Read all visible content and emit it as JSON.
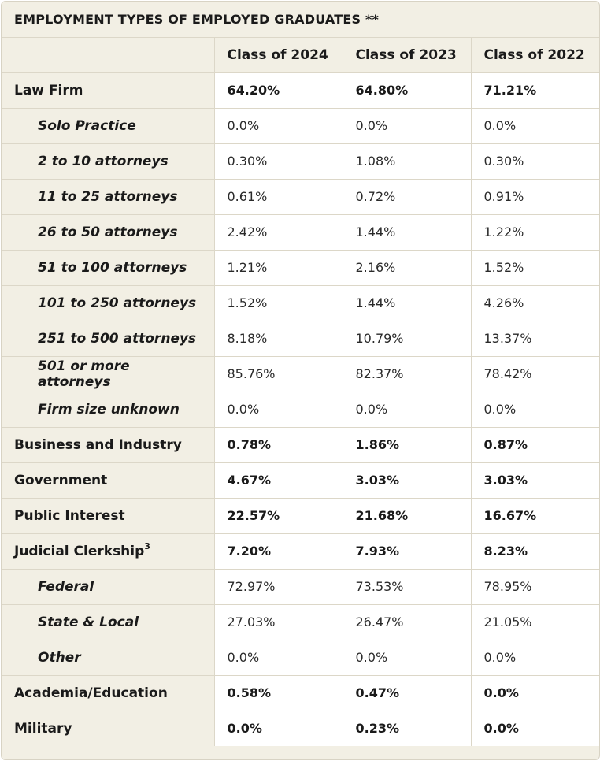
{
  "title": "EMPLOYMENT TYPES OF EMPLOYED GRADUATES **",
  "columns": [
    "",
    "Class of 2024",
    "Class of 2023",
    "Class of 2022"
  ],
  "rows": [
    {
      "label": "Law Firm",
      "sup": "",
      "values": [
        "64.20%",
        "64.80%",
        "71.21%"
      ]
    },
    {
      "label": "Solo Practice",
      "sup": "",
      "values": [
        "0.0%",
        "0.0%",
        "0.0%"
      ]
    },
    {
      "label": "2 to 10 attorneys",
      "sup": "",
      "values": [
        "0.30%",
        "1.08%",
        "0.30%"
      ]
    },
    {
      "label": "11 to 25 attorneys",
      "sup": "",
      "values": [
        "0.61%",
        "0.72%",
        "0.91%"
      ]
    },
    {
      "label": "26 to 50 attorneys",
      "sup": "",
      "values": [
        "2.42%",
        "1.44%",
        "1.22%"
      ]
    },
    {
      "label": "51 to 100 attorneys",
      "sup": "",
      "values": [
        "1.21%",
        "2.16%",
        "1.52%"
      ]
    },
    {
      "label": "101 to 250 attorneys",
      "sup": "",
      "values": [
        "1.52%",
        "1.44%",
        "4.26%"
      ]
    },
    {
      "label": "251 to 500 attorneys",
      "sup": "",
      "values": [
        "8.18%",
        "10.79%",
        "13.37%"
      ]
    },
    {
      "label": "501 or more attorneys",
      "sup": "",
      "values": [
        "85.76%",
        "82.37%",
        "78.42%"
      ]
    },
    {
      "label": "Firm size unknown",
      "sup": "",
      "values": [
        "0.0%",
        "0.0%",
        "0.0%"
      ]
    },
    {
      "label": "Business and Industry",
      "sup": "",
      "values": [
        "0.78%",
        "1.86%",
        "0.87%"
      ]
    },
    {
      "label": "Government",
      "sup": "",
      "values": [
        "4.67%",
        "3.03%",
        "3.03%"
      ]
    },
    {
      "label": "Public Interest",
      "sup": "",
      "values": [
        "22.57%",
        "21.68%",
        "16.67%"
      ]
    },
    {
      "label": "Judicial Clerkship",
      "sup": "3",
      "values": [
        "7.20%",
        "7.93%",
        "8.23%"
      ]
    },
    {
      "label": "Federal",
      "sup": "",
      "values": [
        "72.97%",
        "73.53%",
        "78.95%"
      ]
    },
    {
      "label": "State & Local",
      "sup": "",
      "values": [
        "27.03%",
        "26.47%",
        "21.05%"
      ]
    },
    {
      "label": "Other",
      "sup": "",
      "values": [
        "0.0%",
        "0.0%",
        "0.0%"
      ]
    },
    {
      "label": "Academia/Education",
      "sup": "",
      "values": [
        "0.58%",
        "0.47%",
        "0.0%"
      ]
    },
    {
      "label": "Military",
      "sup": "",
      "values": [
        "0.0%",
        "0.23%",
        "0.0%"
      ]
    }
  ]
}
